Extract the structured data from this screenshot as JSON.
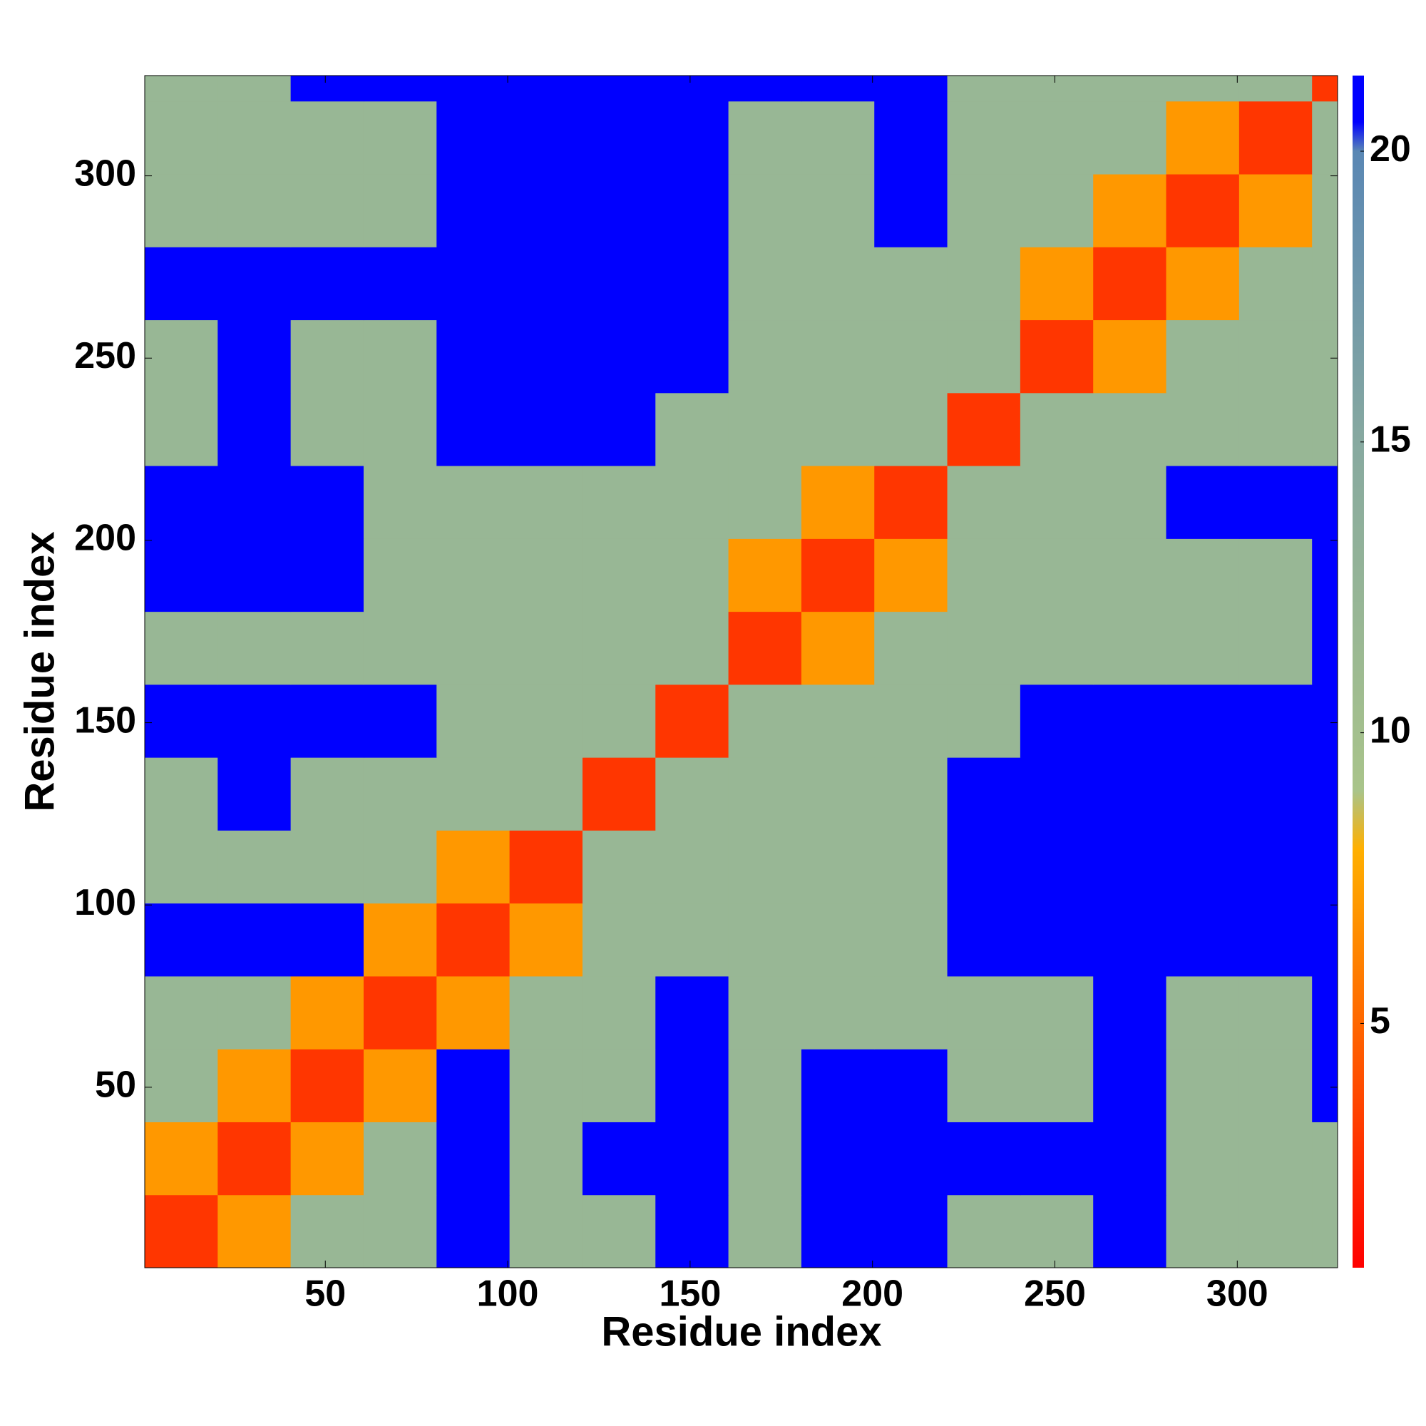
{
  "chart_data": {
    "type": "heatmap",
    "x_label": "Residue index",
    "y_label": "Residue index",
    "bins": [
      0.5,
      20.5,
      40.5,
      60.5,
      80.5,
      100.5,
      120.5,
      140.5,
      160.5,
      180.5,
      200.5,
      220.5,
      240.5,
      260.5,
      280.5,
      300.5,
      320.5,
      327.5
    ],
    "values": [
      [
        3,
        7,
        12,
        12,
        21,
        12,
        12,
        21,
        12,
        21,
        21,
        12,
        12,
        21,
        12,
        12,
        12
      ],
      [
        7,
        3,
        7,
        12,
        21,
        12,
        21,
        21,
        12,
        21,
        21,
        21,
        21,
        21,
        12,
        12,
        12
      ],
      [
        12,
        7,
        3,
        7,
        21,
        12,
        12,
        21,
        12,
        21,
        21,
        12,
        12,
        21,
        12,
        12,
        21
      ],
      [
        12,
        12,
        7,
        3,
        7,
        12,
        12,
        21,
        12,
        12,
        12,
        12,
        12,
        21,
        12,
        12,
        21
      ],
      [
        21,
        21,
        21,
        7,
        3,
        7,
        12,
        12,
        12,
        12,
        12,
        21,
        21,
        21,
        21,
        21,
        21
      ],
      [
        12,
        12,
        12,
        12,
        7,
        3,
        12,
        12,
        12,
        12,
        12,
        21,
        21,
        21,
        21,
        21,
        21
      ],
      [
        12,
        21,
        12,
        12,
        12,
        12,
        3,
        12,
        12,
        12,
        12,
        21,
        21,
        21,
        21,
        21,
        21
      ],
      [
        21,
        21,
        21,
        21,
        12,
        12,
        12,
        3,
        12,
        12,
        12,
        12,
        21,
        21,
        21,
        21,
        21
      ],
      [
        12,
        12,
        12,
        12,
        12,
        12,
        12,
        12,
        3,
        7,
        12,
        12,
        12,
        12,
        12,
        12,
        21
      ],
      [
        21,
        21,
        21,
        12,
        12,
        12,
        12,
        12,
        7,
        3,
        7,
        12,
        12,
        12,
        12,
        12,
        21
      ],
      [
        21,
        21,
        21,
        12,
        12,
        12,
        12,
        12,
        12,
        7,
        3,
        12,
        12,
        12,
        21,
        21,
        21
      ],
      [
        12,
        21,
        12,
        12,
        21,
        21,
        21,
        12,
        12,
        12,
        12,
        3,
        12,
        12,
        12,
        12,
        12
      ],
      [
        12,
        21,
        12,
        12,
        21,
        21,
        21,
        21,
        12,
        12,
        12,
        12,
        3,
        7,
        12,
        12,
        12
      ],
      [
        21,
        21,
        21,
        21,
        21,
        21,
        21,
        21,
        12,
        12,
        12,
        12,
        7,
        3,
        7,
        12,
        12
      ],
      [
        12,
        12,
        12,
        12,
        21,
        21,
        21,
        21,
        12,
        12,
        21,
        12,
        12,
        7,
        3,
        7,
        12
      ],
      [
        12,
        12,
        12,
        12,
        21,
        21,
        21,
        21,
        12,
        12,
        21,
        12,
        12,
        12,
        7,
        3,
        12
      ],
      [
        12,
        12,
        21,
        21,
        21,
        21,
        21,
        21,
        21,
        21,
        21,
        12,
        12,
        12,
        12,
        12,
        3
      ]
    ],
    "xlim": [
      0.5,
      327.5
    ],
    "ylim": [
      0.5,
      327.5
    ],
    "xticks": [
      50,
      100,
      150,
      200,
      250,
      300
    ],
    "yticks": [
      50,
      100,
      150,
      200,
      250,
      300
    ],
    "zlim": [
      0.8,
      21.3
    ],
    "zticks": [
      5,
      10,
      15,
      20
    ],
    "colorscale": [
      [
        0.8,
        "#ff0000"
      ],
      [
        8,
        "#ffb000"
      ],
      [
        9,
        "#a9c48a"
      ],
      [
        15,
        "#87a9a0"
      ],
      [
        20,
        "#5a87b4"
      ],
      [
        20.5,
        "#0000ff"
      ]
    ]
  }
}
